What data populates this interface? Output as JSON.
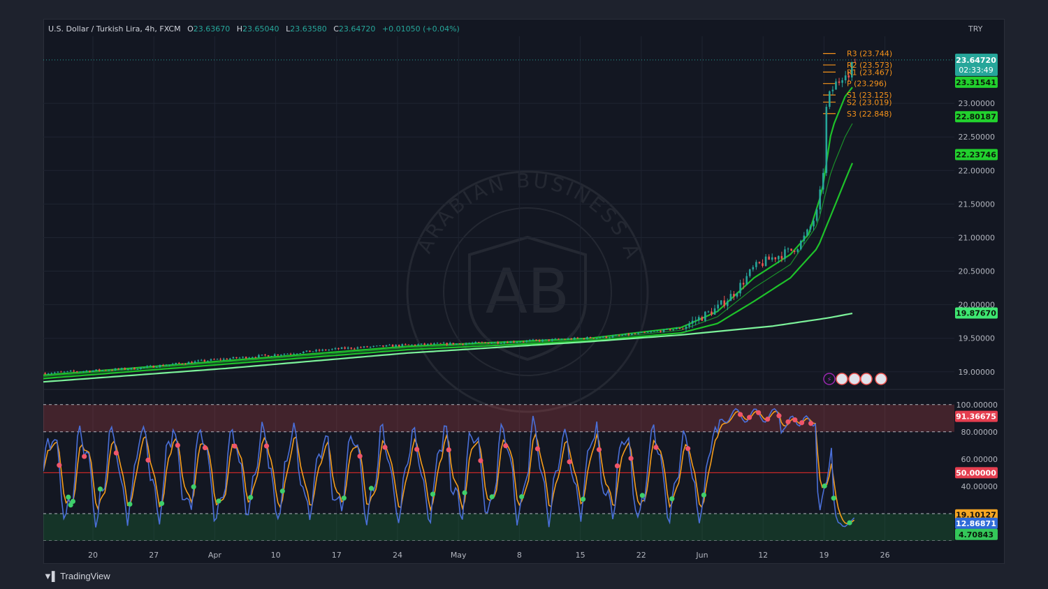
{
  "header": {
    "symbol": "U.S. Dollar / Turkish Lira, 4h, FXCM",
    "o_label": "O",
    "o_value": "23.63670",
    "h_label": "H",
    "h_value": "23.65040",
    "l_label": "L",
    "l_value": "23.63580",
    "c_label": "C",
    "c_value": "23.64720",
    "change": "+0.01050 (+0.04%)"
  },
  "currency": "TRY",
  "last_price": "23.64720",
  "countdown": "02:33:49",
  "brand": "TradingView",
  "watermark": {
    "logo": "AB",
    "text": "ARABIAN BUSINESS ACADEMY"
  },
  "colors": {
    "background": "#131722",
    "up": "#26a69a",
    "down": "#ef5350",
    "ema": "#1ec22a",
    "ema_slow": "#7cf29a",
    "pivot": "#f7931a",
    "stoch_k": "#4a6fd8",
    "stoch_d": "#f59d1c"
  },
  "chart_data": [
    {
      "type": "candlestick",
      "title": "U.S. Dollar / Turkish Lira, 4h, FXCM",
      "y_axis": {
        "ticks": [
          "19.00000",
          "19.50000",
          "20.00000",
          "20.50000",
          "21.00000",
          "21.50000",
          "22.00000",
          "22.50000",
          "23.00000"
        ],
        "range": [
          18.8,
          24.0
        ]
      },
      "x_axis": {
        "ticks": [
          "20",
          "27",
          "Apr",
          "10",
          "17",
          "24",
          "May",
          "8",
          "15",
          "22",
          "Jun",
          "12",
          "19",
          "26"
        ]
      },
      "price_path": [
        [
          0,
          18.98
        ],
        [
          10,
          19.05
        ],
        [
          18,
          19.17
        ],
        [
          25,
          19.25
        ],
        [
          33,
          19.35
        ],
        [
          40,
          19.4
        ],
        [
          48,
          19.43
        ],
        [
          55,
          19.47
        ],
        [
          62,
          19.52
        ],
        [
          66,
          19.58
        ],
        [
          70,
          19.65
        ],
        [
          72,
          19.8
        ],
        [
          74,
          19.95
        ],
        [
          76,
          20.2
        ],
        [
          78,
          20.55
        ],
        [
          80,
          20.7
        ],
        [
          82,
          20.8
        ],
        [
          83,
          20.9
        ],
        [
          84,
          21.1
        ],
        [
          85,
          21.4
        ],
        [
          85.6,
          22.0
        ],
        [
          86,
          23.05
        ],
        [
          86.6,
          23.2
        ],
        [
          87,
          23.3
        ],
        [
          87.5,
          23.35
        ],
        [
          88,
          23.5
        ],
        [
          88.5,
          23.35
        ],
        [
          88.8,
          23.6
        ],
        [
          89.2,
          23.64
        ]
      ],
      "moving_averages": [
        {
          "value": "23.31541",
          "path": [
            [
              0,
              18.95
            ],
            [
              40,
              19.38
            ],
            [
              60,
              19.5
            ],
            [
              70,
              19.66
            ],
            [
              74,
              19.9
            ],
            [
              78,
              20.4
            ],
            [
              82,
              20.75
            ],
            [
              84,
              21.05
            ],
            [
              85.5,
              21.7
            ],
            [
              86.5,
              22.6
            ],
            [
              88,
              23.1
            ],
            [
              89.2,
              23.31
            ]
          ]
        },
        {
          "value": "22.80187",
          "path": [
            [
              0,
              18.93
            ],
            [
              40,
              19.36
            ],
            [
              60,
              19.48
            ],
            [
              70,
              19.62
            ],
            [
              74,
              19.82
            ],
            [
              78,
              20.25
            ],
            [
              82,
              20.6
            ],
            [
              85,
              21.2
            ],
            [
              86.5,
              22.0
            ],
            [
              88,
              22.5
            ],
            [
              89.2,
              22.8
            ]
          ]
        },
        {
          "value": "22.23746",
          "path": [
            [
              0,
              18.9
            ],
            [
              40,
              19.33
            ],
            [
              60,
              19.46
            ],
            [
              70,
              19.58
            ],
            [
              74,
              19.72
            ],
            [
              78,
              20.05
            ],
            [
              82,
              20.4
            ],
            [
              85,
              20.85
            ],
            [
              86.5,
              21.35
            ],
            [
              88,
              21.85
            ],
            [
              89.2,
              22.24
            ]
          ]
        },
        {
          "value": "19.87670",
          "path": [
            [
              0,
              18.85
            ],
            [
              20,
              19.05
            ],
            [
              40,
              19.28
            ],
            [
              60,
              19.45
            ],
            [
              70,
              19.55
            ],
            [
              80,
              19.68
            ],
            [
              86,
              19.8
            ],
            [
              89.2,
              19.88
            ]
          ]
        }
      ],
      "pivots": [
        {
          "label": "R3 (23.744)",
          "value": 23.744
        },
        {
          "label": "R2 (23.573)",
          "value": 23.573
        },
        {
          "label": "R1 (23.467)",
          "value": 23.467
        },
        {
          "label": "P (23.296)",
          "value": 23.296
        },
        {
          "label": "S1 (23.125)",
          "value": 23.125
        },
        {
          "label": "S2 (23.019)",
          "value": 23.019
        },
        {
          "label": "S3 (22.848)",
          "value": 22.848
        }
      ]
    },
    {
      "type": "line",
      "y_axis": {
        "ticks": [
          "40.00000",
          "60.00000",
          "80.00000",
          "100.00000"
        ],
        "range": [
          0,
          105
        ]
      },
      "levels": [
        80,
        20,
        50
      ],
      "series": [
        {
          "value": "91.36675"
        },
        {
          "value": "19.10127"
        },
        {
          "value": "12.86871"
        },
        {
          "value": "4.70843"
        }
      ],
      "midline_label": "50.00000"
    }
  ]
}
